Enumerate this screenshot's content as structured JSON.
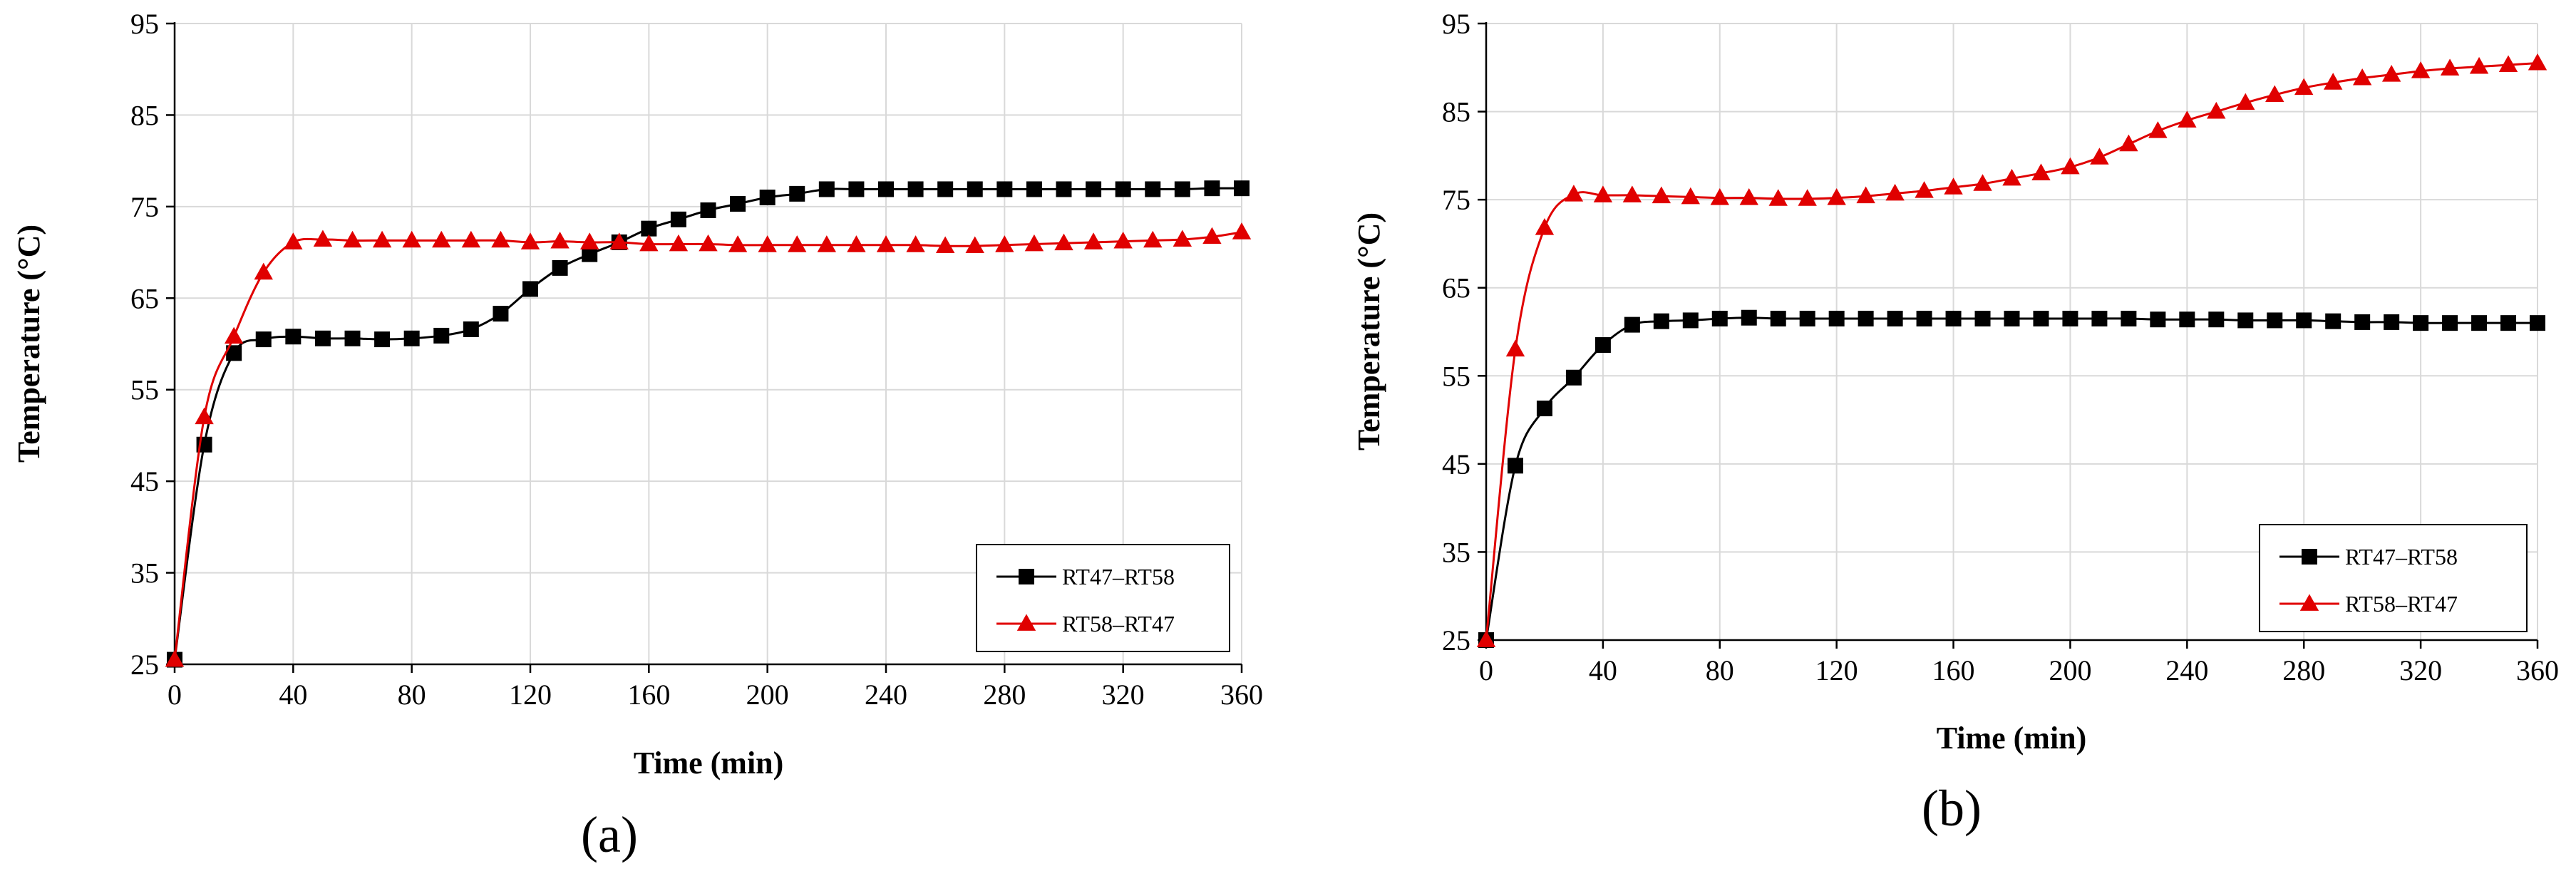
{
  "chart_data": [
    {
      "type": "line",
      "panel_label": "(a)",
      "xlabel": "Time (min)",
      "ylabel": "Temperature (°C)",
      "xlim": [
        0,
        360
      ],
      "ylim": [
        25,
        95
      ],
      "xticks": [
        0,
        40,
        80,
        120,
        160,
        200,
        240,
        280,
        320,
        360
      ],
      "yticks": [
        25,
        35,
        45,
        55,
        65,
        75,
        85,
        95
      ],
      "grid": true,
      "legend_position": "bottom-right",
      "x": [
        0,
        10,
        20,
        30,
        40,
        50,
        60,
        70,
        80,
        90,
        100,
        110,
        120,
        130,
        140,
        150,
        160,
        170,
        180,
        190,
        200,
        210,
        220,
        230,
        240,
        250,
        260,
        270,
        280,
        290,
        300,
        310,
        320,
        330,
        340,
        350,
        360
      ],
      "series": [
        {
          "name": "RT47–RT58",
          "marker": "square",
          "color": "#000000",
          "values": [
            25.5,
            49,
            59,
            60.5,
            60.8,
            60.6,
            60.6,
            60.5,
            60.6,
            60.9,
            61.6,
            63.3,
            66,
            68.3,
            69.8,
            71.1,
            72.6,
            73.6,
            74.6,
            75.3,
            76,
            76.4,
            76.9,
            76.9,
            76.9,
            76.9,
            76.9,
            76.9,
            76.9,
            76.9,
            76.9,
            76.9,
            76.9,
            76.9,
            76.9,
            77,
            77
          ]
        },
        {
          "name": "RT58–RT47",
          "marker": "triangle",
          "color": "#e00000",
          "values": [
            25.5,
            52,
            60.8,
            67.8,
            71.1,
            71.4,
            71.3,
            71.3,
            71.3,
            71.3,
            71.3,
            71.3,
            71.1,
            71.2,
            71.1,
            71.1,
            70.9,
            70.9,
            70.9,
            70.8,
            70.8,
            70.8,
            70.8,
            70.8,
            70.8,
            70.8,
            70.7,
            70.7,
            70.8,
            70.9,
            71,
            71.1,
            71.2,
            71.3,
            71.4,
            71.7,
            72.2
          ]
        }
      ]
    },
    {
      "type": "line",
      "panel_label": "(b)",
      "xlabel": "Time (min)",
      "ylabel": "Temperature (°C)",
      "xlim": [
        0,
        360
      ],
      "ylim": [
        25,
        95
      ],
      "xticks": [
        0,
        40,
        80,
        120,
        160,
        200,
        240,
        280,
        320,
        360
      ],
      "yticks": [
        25,
        35,
        45,
        55,
        65,
        75,
        85,
        95
      ],
      "grid": true,
      "legend_position": "bottom-right",
      "x": [
        0,
        10,
        20,
        30,
        40,
        50,
        60,
        70,
        80,
        90,
        100,
        110,
        120,
        130,
        140,
        150,
        160,
        170,
        180,
        190,
        200,
        210,
        220,
        230,
        240,
        250,
        260,
        270,
        280,
        290,
        300,
        310,
        320,
        330,
        340,
        350,
        360
      ],
      "series": [
        {
          "name": "RT47–RT58",
          "marker": "square",
          "color": "#000000",
          "values": [
            25,
            44.8,
            51.3,
            54.8,
            58.5,
            60.8,
            61.2,
            61.3,
            61.5,
            61.6,
            61.5,
            61.5,
            61.5,
            61.5,
            61.5,
            61.5,
            61.5,
            61.5,
            61.5,
            61.5,
            61.5,
            61.5,
            61.5,
            61.4,
            61.4,
            61.4,
            61.3,
            61.3,
            61.3,
            61.2,
            61.1,
            61.1,
            61,
            61,
            61,
            61,
            61
          ]
        },
        {
          "name": "RT58–RT47",
          "marker": "triangle",
          "color": "#e00000",
          "values": [
            25,
            58,
            71.8,
            75.6,
            75.5,
            75.5,
            75.4,
            75.3,
            75.2,
            75.2,
            75.1,
            75.1,
            75.2,
            75.4,
            75.7,
            76,
            76.4,
            76.8,
            77.4,
            78,
            78.7,
            79.8,
            81.3,
            82.8,
            84,
            85,
            86,
            86.9,
            87.7,
            88.3,
            88.8,
            89.2,
            89.6,
            89.9,
            90.1,
            90.3,
            90.5
          ]
        }
      ]
    }
  ]
}
